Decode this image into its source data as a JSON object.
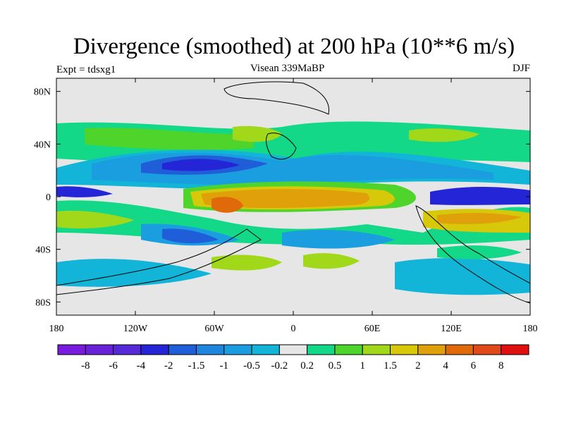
{
  "chart_data": {
    "type": "heatmap",
    "title": "Divergence (smoothed) at 200 hPa (10**6 m/s)",
    "left_subtitle": "Expt = tdsxg1",
    "center_subtitle": "Visean 339MaBP",
    "right_subtitle": "DJF",
    "x_ticks": [
      "180",
      "120W",
      "60W",
      "0",
      "60E",
      "120E",
      "180"
    ],
    "y_ticks": [
      "80N",
      "40N",
      "0",
      "40S",
      "80S"
    ],
    "xlim": [
      -180,
      180
    ],
    "ylim": [
      -90,
      90
    ],
    "colorbar": {
      "colors": [
        "#7a1ce0",
        "#6a1fd8",
        "#5528d8",
        "#2525d8",
        "#1f5ed8",
        "#1f86e0",
        "#1a9ee0",
        "#12b4d8",
        "#e6e6e6",
        "#12d888",
        "#4ed42a",
        "#a2d81a",
        "#d8c80a",
        "#e0a00a",
        "#e06a0a",
        "#e04a1a",
        "#e01010"
      ],
      "labels": [
        "-8",
        "-6",
        "-4",
        "-2",
        "-1.5",
        "-1",
        "-0.5",
        "-0.2",
        "0.2",
        "0.5",
        "1",
        "1.5",
        "2",
        "4",
        "6",
        "8"
      ]
    }
  }
}
